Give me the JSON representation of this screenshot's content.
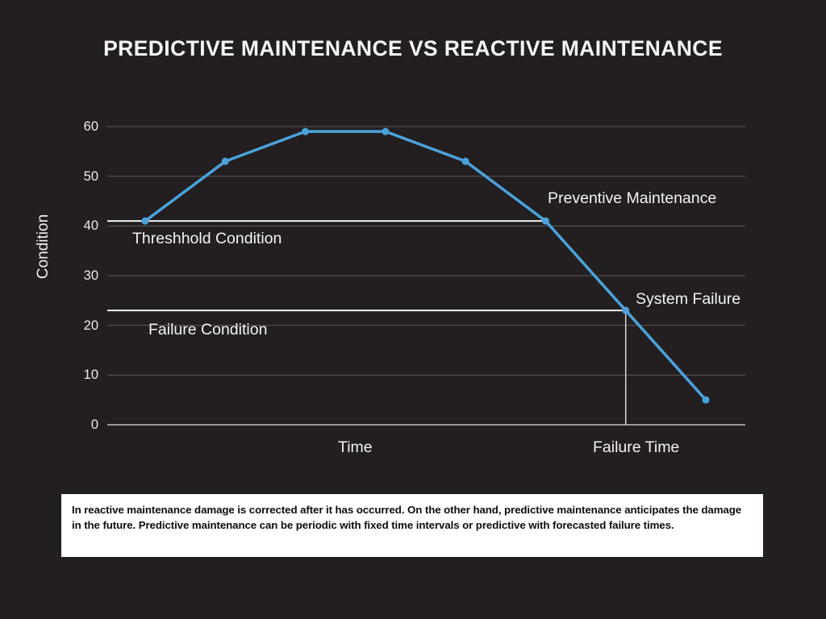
{
  "title": "PREDICTIVE MAINTENANCE VS REACTIVE MAINTENANCE",
  "chart_data": {
    "type": "line",
    "x": [
      0,
      1,
      2,
      3,
      4,
      5,
      6,
      7
    ],
    "series": [
      {
        "name": "Condition",
        "values": [
          41,
          53,
          59,
          59,
          53,
          41,
          23,
          5
        ]
      }
    ],
    "title": "",
    "xlabel": "Time",
    "ylabel": "Condition",
    "yticks": [
      0,
      10,
      20,
      30,
      40,
      50,
      60
    ],
    "ylim": [
      0,
      60
    ],
    "grid": true,
    "legend": "none",
    "annotations": {
      "threshold_line": {
        "label": "Threshhold Condition",
        "value": 41,
        "ends_at_index": 5
      },
      "failure_line": {
        "label": "Failure Condition",
        "value": 23,
        "ends_at_index": 6
      },
      "failure_time": {
        "label": "Failure Time",
        "at_index": 6
      },
      "preventive_maintenance_label": "Preventive Maintenance",
      "system_failure_label": "System Failure"
    }
  },
  "footer_note": "In reactive maintenance damage is corrected after it has occurred. On the other hand, predictive maintenance anticipates the damage in the future. Predictive maintenance can be periodic with fixed time intervals or predictive with forecasted failure times.",
  "colors": {
    "background": "#231f20",
    "accent_line": "#4aa2db",
    "gridline": "#5b5859",
    "axis_line": "#9b9899",
    "reference_line": "#ffffff",
    "vertical_marker": "#d8d5d6",
    "text": "#f4f2f2",
    "footer_background": "#ffffff",
    "footer_text": "#0d0d0d"
  }
}
